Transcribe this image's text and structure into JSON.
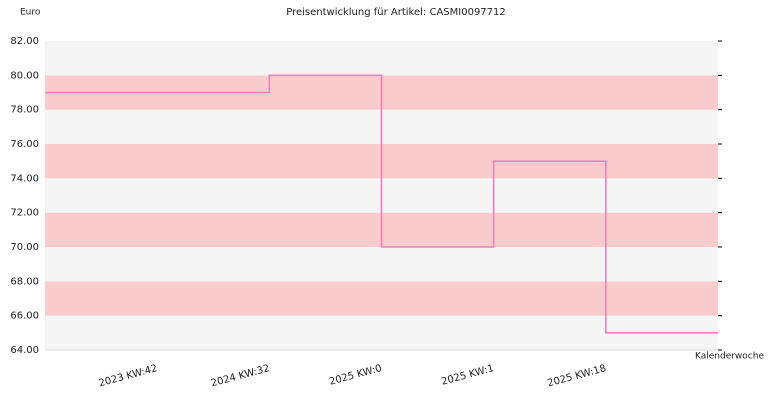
{
  "chart_data": {
    "type": "step",
    "title": "Preisentwicklung für Artikel: CASMI0097712",
    "y_label": "Euro",
    "x_label": "Kalenderwoche",
    "categories": [
      null,
      "2023 KW:42",
      "2024 KW:32",
      "2025 KW:0",
      "2025 KW:1",
      "2025 KW:18"
    ],
    "values": [
      79,
      79,
      80,
      70,
      75,
      65
    ],
    "color": "#f080c0",
    "band_colors": [
      "#f5f5f5",
      "#f8cccc"
    ],
    "ylim": [
      64,
      82
    ],
    "yticks": [
      {
        "value": 64,
        "label": "64.00"
      },
      {
        "value": 66,
        "label": "66.00"
      },
      {
        "value": 68,
        "label": "68.00"
      },
      {
        "value": 70,
        "label": "70.00"
      },
      {
        "value": 72,
        "label": "72.00"
      },
      {
        "value": 74,
        "label": "74.00"
      },
      {
        "value": 76,
        "label": "76.00"
      },
      {
        "value": 78,
        "label": "78.00"
      },
      {
        "value": 80,
        "label": "80.00"
      },
      {
        "value": 82,
        "label": "82.00"
      }
    ]
  }
}
